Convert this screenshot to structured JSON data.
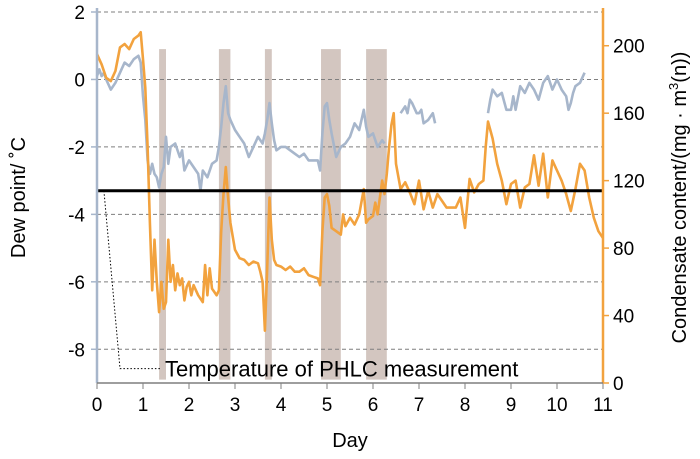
{
  "chart_data": {
    "type": "line",
    "xlabel": "Day",
    "ylabel_left": "Dew point/ ˚C",
    "ylabel_right": "Condensate content/(mg · m3(n))",
    "ylabel_right_parts": {
      "pre": "Condensate content/(mg · m",
      "sup": "3",
      "post": "(n))"
    },
    "xlim": [
      0,
      11
    ],
    "ylim_left": [
      -9,
      2
    ],
    "ylim_right": [
      0,
      220
    ],
    "x_ticks": [
      "0",
      "1",
      "2",
      "3",
      "4",
      "5",
      "6",
      "7",
      "8",
      "9",
      "10",
      "11"
    ],
    "y_left_ticks": [
      "2",
      "0",
      "-2",
      "-4",
      "-6",
      "-8"
    ],
    "y_right_ticks": [
      "200",
      "160",
      "120",
      "80",
      "40",
      "0"
    ],
    "grid": "horizontal dashed",
    "reference_line": {
      "label": "Temperature of PHLC measurement",
      "y_left": -3.3
    },
    "shaded_intervals": [
      [
        1.35,
        1.5
      ],
      [
        2.65,
        2.9
      ],
      [
        3.65,
        3.8
      ],
      [
        4.87,
        5.3
      ],
      [
        5.85,
        6.3
      ]
    ],
    "series": [
      {
        "axis": "left",
        "color": "#a7b6cb",
        "points": [
          [
            0,
            0.1
          ],
          [
            0.05,
            0.3
          ],
          [
            0.1,
            0.1
          ],
          [
            0.15,
            0.2
          ],
          [
            0.2,
            0.0
          ],
          [
            0.3,
            -0.3
          ],
          [
            0.4,
            -0.1
          ],
          [
            0.5,
            0.2
          ],
          [
            0.6,
            0.5
          ],
          [
            0.7,
            0.4
          ],
          [
            0.8,
            0.6
          ],
          [
            0.9,
            0.7
          ],
          [
            0.95,
            0.5
          ],
          [
            1.0,
            -0.5
          ],
          [
            1.05,
            -1.2
          ],
          [
            1.1,
            -2.4
          ],
          [
            1.15,
            -2.8
          ],
          [
            1.2,
            -2.5
          ],
          [
            1.25,
            -2.8
          ],
          [
            1.3,
            -2.9
          ],
          [
            1.35,
            -3.2
          ],
          [
            1.4,
            -2.8
          ],
          [
            1.45,
            -2.6
          ],
          [
            1.5,
            -1.7
          ],
          [
            1.55,
            -2.5
          ],
          [
            1.6,
            -2.0
          ],
          [
            1.7,
            -1.9
          ],
          [
            1.8,
            -2.3
          ],
          [
            1.85,
            -2.1
          ],
          [
            1.9,
            -2.7
          ],
          [
            2.0,
            -2.4
          ],
          [
            2.1,
            -2.6
          ],
          [
            2.2,
            -2.8
          ],
          [
            2.25,
            -3.3
          ],
          [
            2.3,
            -2.7
          ],
          [
            2.4,
            -2.9
          ],
          [
            2.5,
            -2.5
          ],
          [
            2.6,
            -2.4
          ],
          [
            2.65,
            -2.0
          ],
          [
            2.7,
            -1.4
          ],
          [
            2.75,
            -0.7
          ],
          [
            2.8,
            -0.2
          ],
          [
            2.85,
            -1.0
          ],
          [
            2.9,
            -1.2
          ],
          [
            3.0,
            -1.5
          ],
          [
            3.1,
            -1.7
          ],
          [
            3.2,
            -1.9
          ],
          [
            3.3,
            -2.3
          ],
          [
            3.4,
            -2.0
          ],
          [
            3.5,
            -1.7
          ],
          [
            3.6,
            -1.9
          ],
          [
            3.65,
            -1.6
          ],
          [
            3.7,
            -1.2
          ],
          [
            3.75,
            -0.7
          ],
          [
            3.8,
            -1.3
          ],
          [
            3.85,
            -1.8
          ],
          [
            3.9,
            -2.1
          ],
          [
            4.0,
            -2.0
          ],
          [
            4.1,
            -2.0
          ],
          [
            4.2,
            -2.1
          ],
          [
            4.3,
            -2.2
          ],
          [
            4.4,
            -2.3
          ],
          [
            4.5,
            -2.2
          ],
          [
            4.6,
            -2.4
          ],
          [
            4.7,
            -2.4
          ],
          [
            4.8,
            -2.4
          ],
          [
            4.85,
            -2.7
          ],
          [
            4.9,
            -1.6
          ],
          [
            4.95,
            -0.8
          ],
          [
            5.0,
            -0.7
          ],
          [
            5.05,
            -1.2
          ],
          [
            5.1,
            -1.6
          ],
          [
            5.2,
            -2.3
          ],
          [
            5.3,
            -2.0
          ],
          [
            5.4,
            -1.9
          ],
          [
            5.5,
            -1.7
          ],
          [
            5.6,
            -1.3
          ],
          [
            5.7,
            -1.5
          ],
          [
            5.8,
            -0.9
          ],
          [
            5.85,
            -1.4
          ],
          [
            5.9,
            -1.7
          ],
          [
            6.0,
            -1.6
          ],
          [
            6.1,
            -2.0
          ],
          [
            6.2,
            -1.8
          ],
          [
            6.25,
            -1.9
          ]
        ]
      },
      {
        "axis": "left",
        "color": "#a7b6cb",
        "points": [
          [
            6.6,
            -1.0
          ],
          [
            6.7,
            -0.8
          ],
          [
            6.75,
            -1.0
          ],
          [
            6.8,
            -0.6
          ],
          [
            6.85,
            -0.7
          ],
          [
            6.95,
            -1.0
          ],
          [
            7.0,
            -1.0
          ],
          [
            7.05,
            -0.9
          ],
          [
            7.1,
            -1.3
          ],
          [
            7.2,
            -1.2
          ],
          [
            7.3,
            -1.0
          ],
          [
            7.35,
            -1.3
          ]
        ]
      },
      {
        "axis": "left",
        "color": "#a7b6cb",
        "points": [
          [
            8.5,
            -1.0
          ],
          [
            8.55,
            -0.6
          ],
          [
            8.6,
            -0.3
          ],
          [
            8.7,
            -0.5
          ],
          [
            8.8,
            -0.4
          ],
          [
            8.9,
            -0.9
          ],
          [
            9.0,
            -0.9
          ],
          [
            9.05,
            -0.5
          ],
          [
            9.1,
            -0.9
          ],
          [
            9.2,
            -0.2
          ],
          [
            9.3,
            -0.4
          ],
          [
            9.4,
            -0.1
          ],
          [
            9.5,
            -0.3
          ],
          [
            9.6,
            -0.6
          ],
          [
            9.7,
            -0.1
          ],
          [
            9.8,
            0.1
          ],
          [
            9.9,
            -0.3
          ],
          [
            10.0,
            0.0
          ],
          [
            10.1,
            -0.3
          ],
          [
            10.2,
            -0.5
          ],
          [
            10.25,
            -0.9
          ],
          [
            10.3,
            -0.7
          ],
          [
            10.35,
            -0.4
          ],
          [
            10.4,
            -0.2
          ],
          [
            10.5,
            -0.1
          ],
          [
            10.6,
            0.2
          ]
        ]
      },
      {
        "axis": "right",
        "color": "#f2a23e",
        "points": [
          [
            0,
            195
          ],
          [
            0.1,
            189
          ],
          [
            0.2,
            181
          ],
          [
            0.3,
            179
          ],
          [
            0.4,
            185
          ],
          [
            0.5,
            199
          ],
          [
            0.6,
            201
          ],
          [
            0.7,
            198
          ],
          [
            0.8,
            204
          ],
          [
            0.9,
            206
          ],
          [
            0.95,
            208
          ],
          [
            1.0,
            192
          ],
          [
            1.05,
            175
          ],
          [
            1.1,
            140
          ],
          [
            1.15,
            95
          ],
          [
            1.2,
            55
          ],
          [
            1.25,
            85
          ],
          [
            1.3,
            60
          ],
          [
            1.35,
            42
          ],
          [
            1.4,
            60
          ],
          [
            1.45,
            44
          ],
          [
            1.5,
            48
          ],
          [
            1.55,
            85
          ],
          [
            1.6,
            60
          ],
          [
            1.65,
            70
          ],
          [
            1.7,
            55
          ],
          [
            1.75,
            65
          ],
          [
            1.8,
            58
          ],
          [
            1.85,
            62
          ],
          [
            1.9,
            49
          ],
          [
            1.95,
            57
          ],
          [
            2.0,
            60
          ],
          [
            2.05,
            52
          ],
          [
            2.1,
            58
          ],
          [
            2.2,
            52
          ],
          [
            2.3,
            48
          ],
          [
            2.35,
            70
          ],
          [
            2.4,
            52
          ],
          [
            2.45,
            68
          ],
          [
            2.5,
            56
          ],
          [
            2.55,
            54
          ],
          [
            2.6,
            52
          ],
          [
            2.65,
            55
          ],
          [
            2.7,
            90
          ],
          [
            2.75,
            112
          ],
          [
            2.8,
            128
          ],
          [
            2.85,
            110
          ],
          [
            2.9,
            95
          ],
          [
            3.0,
            79
          ],
          [
            3.1,
            74
          ],
          [
            3.2,
            73
          ],
          [
            3.3,
            70
          ],
          [
            3.4,
            72
          ],
          [
            3.5,
            71
          ],
          [
            3.55,
            66
          ],
          [
            3.6,
            60
          ],
          [
            3.65,
            31
          ],
          [
            3.7,
            68
          ],
          [
            3.75,
            110
          ],
          [
            3.8,
            85
          ],
          [
            3.85,
            73
          ],
          [
            3.9,
            70
          ],
          [
            4.0,
            69
          ],
          [
            4.1,
            67
          ],
          [
            4.2,
            69
          ],
          [
            4.3,
            66
          ],
          [
            4.4,
            66
          ],
          [
            4.5,
            68
          ],
          [
            4.6,
            64
          ],
          [
            4.7,
            63
          ],
          [
            4.8,
            62
          ],
          [
            4.85,
            58
          ],
          [
            4.9,
            90
          ],
          [
            4.95,
            110
          ],
          [
            5.0,
            112
          ],
          [
            5.05,
            105
          ],
          [
            5.1,
            92
          ],
          [
            5.2,
            90
          ],
          [
            5.3,
            88
          ],
          [
            5.35,
            100
          ],
          [
            5.4,
            93
          ],
          [
            5.5,
            98
          ],
          [
            5.6,
            94
          ],
          [
            5.7,
            100
          ],
          [
            5.8,
            115
          ],
          [
            5.85,
            95
          ],
          [
            5.9,
            97
          ],
          [
            6.0,
            99
          ],
          [
            6.05,
            107
          ],
          [
            6.1,
            100
          ],
          [
            6.2,
            120
          ],
          [
            6.25,
            112
          ],
          [
            6.3,
            124
          ],
          [
            6.35,
            140
          ],
          [
            6.4,
            153
          ],
          [
            6.45,
            160
          ],
          [
            6.5,
            130
          ],
          [
            6.6,
            115
          ],
          [
            6.7,
            119
          ],
          [
            6.8,
            113
          ],
          [
            6.9,
            106
          ],
          [
            7.0,
            120
          ],
          [
            7.1,
            103
          ],
          [
            7.2,
            114
          ],
          [
            7.3,
            104
          ],
          [
            7.4,
            112
          ],
          [
            7.5,
            108
          ],
          [
            7.6,
            104
          ],
          [
            7.7,
            104
          ],
          [
            7.8,
            104
          ],
          [
            7.9,
            110
          ],
          [
            8.0,
            92
          ],
          [
            8.1,
            121
          ],
          [
            8.2,
            113
          ],
          [
            8.3,
            118
          ],
          [
            8.4,
            120
          ],
          [
            8.45,
            140
          ],
          [
            8.5,
            155
          ],
          [
            8.55,
            150
          ],
          [
            8.6,
            145
          ],
          [
            8.7,
            130
          ],
          [
            8.8,
            120
          ],
          [
            8.9,
            106
          ],
          [
            9.0,
            118
          ],
          [
            9.1,
            120
          ],
          [
            9.2,
            104
          ],
          [
            9.3,
            116
          ],
          [
            9.4,
            118
          ],
          [
            9.5,
            135
          ],
          [
            9.6,
            117
          ],
          [
            9.7,
            136
          ],
          [
            9.8,
            110
          ],
          [
            9.9,
            132
          ],
          [
            10.0,
            126
          ],
          [
            10.1,
            120
          ],
          [
            10.2,
            112
          ],
          [
            10.3,
            102
          ],
          [
            10.4,
            115
          ],
          [
            10.5,
            130
          ],
          [
            10.6,
            126
          ],
          [
            10.7,
            110
          ],
          [
            10.8,
            98
          ],
          [
            10.9,
            90
          ],
          [
            11.0,
            86
          ]
        ]
      }
    ]
  }
}
